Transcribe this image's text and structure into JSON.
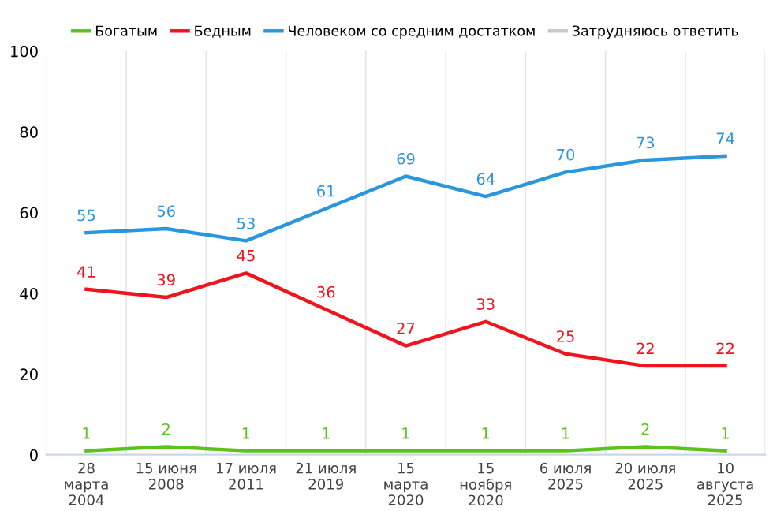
{
  "chart_data": {
    "type": "line",
    "categories": [
      "28\nмарта\n2004",
      "15 июня\n2008",
      "17 июля\n2011",
      "21 июля\n2019",
      "15\nмарта\n2020",
      "15\nноября\n2020",
      "6 июля\n2025",
      "20 июля\n2025",
      "10\nавгуста\n2025"
    ],
    "series": [
      {
        "name": "Богатым",
        "color": "#5cc21c",
        "values": [
          1,
          2,
          1,
          1,
          1,
          1,
          1,
          2,
          1
        ]
      },
      {
        "name": "Бедным",
        "color": "#f0141e",
        "values": [
          41,
          39,
          45,
          36,
          27,
          33,
          25,
          22,
          22
        ]
      },
      {
        "name": "Человеком со средним достатком",
        "color": "#2a96dc",
        "values": [
          55,
          56,
          53,
          61,
          69,
          64,
          70,
          73,
          74
        ]
      },
      {
        "name": "Затрудняюсь ответить",
        "color": "#c8c8c8",
        "values": [
          null,
          null,
          null,
          null,
          null,
          null,
          null,
          null,
          null
        ]
      }
    ],
    "ylim": [
      0,
      100
    ],
    "yticks": [
      0,
      20,
      40,
      60,
      80,
      100
    ],
    "grid": "x",
    "legend": "top",
    "data_labels": true,
    "marker": "none",
    "line_style": "solid"
  }
}
